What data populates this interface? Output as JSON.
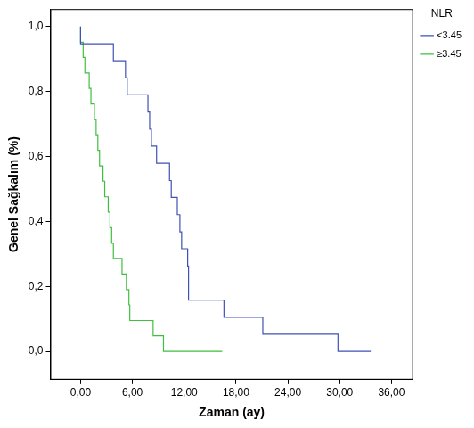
{
  "chart_data": {
    "type": "line",
    "x_label": "Zaman (ay)",
    "y_label": "Genel Sağkalım (%)",
    "legend_title": "NLR",
    "legend": "right",
    "grid": false,
    "line_style": "step",
    "xlim": [
      -3.5,
      38.5
    ],
    "xticks": [
      {
        "value": 0,
        "label": "0,00"
      },
      {
        "value": 6,
        "label": "6,00"
      },
      {
        "value": 12,
        "label": "12,00"
      },
      {
        "value": 18,
        "label": "18,00"
      },
      {
        "value": 24,
        "label": "24,00"
      },
      {
        "value": 30,
        "label": "30,00"
      },
      {
        "value": 36,
        "label": "36,00"
      }
    ],
    "ylim": [
      -0.087,
      1.054
    ],
    "yticks": [
      {
        "value": 0,
        "label": "0,0"
      },
      {
        "value": 0.2,
        "label": "0,2"
      },
      {
        "value": 0.4,
        "label": "0,4"
      },
      {
        "value": 0.6,
        "label": "0,6"
      },
      {
        "value": 0.8,
        "label": "0,8"
      },
      {
        "value": 1,
        "label": "1,0"
      }
    ],
    "series": [
      {
        "name": "<3.45",
        "color": "#3f51b5",
        "x": [
          0,
          3.8,
          5.2,
          5.4,
          7.8,
          8.0,
          8.2,
          8.8,
          10.3,
          10.5,
          11.2,
          11.5,
          11.7,
          12.4,
          12.5,
          16.6,
          21.1,
          29.8,
          33.6
        ],
        "values": [
          1,
          0.947,
          0.895,
          0.842,
          0.79,
          0.737,
          0.684,
          0.632,
          0.579,
          0.526,
          0.474,
          0.421,
          0.368,
          0.316,
          0.263,
          0.158,
          0.105,
          0.053,
          0
        ]
      },
      {
        "name": "≥3.45",
        "color": "#3fbf3f",
        "x": [
          0,
          0.3,
          0.5,
          1.0,
          1.2,
          1.6,
          1.8,
          2.0,
          2.2,
          2.6,
          2.8,
          3.2,
          3.4,
          3.6,
          3.8,
          4.8,
          5.3,
          5.6,
          5.7,
          8.4,
          9.6,
          16.4
        ],
        "values": [
          1,
          0.952,
          0.905,
          0.857,
          0.81,
          0.762,
          0.714,
          0.667,
          0.619,
          0.571,
          0.524,
          0.476,
          0.429,
          0.381,
          0.333,
          0.286,
          0.238,
          0.19,
          0.143,
          0.095,
          0.048,
          0
        ]
      }
    ]
  }
}
